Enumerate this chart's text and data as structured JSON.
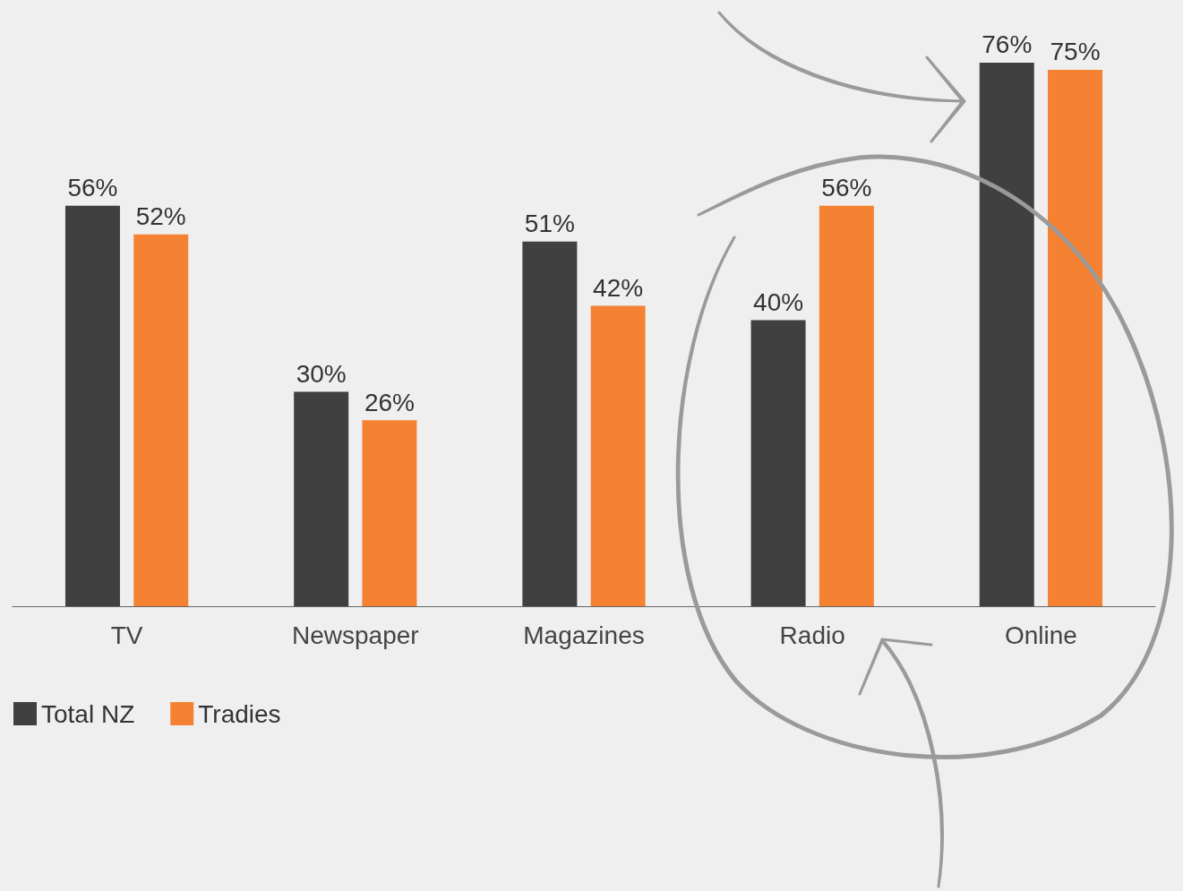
{
  "chart_data": {
    "type": "bar",
    "categories": [
      "TV",
      "Newspaper",
      "Magazines",
      "Radio",
      "Online"
    ],
    "series": [
      {
        "name": "Total NZ",
        "color": "#404040",
        "values": [
          56,
          30,
          51,
          40,
          76
        ],
        "value_labels": [
          "56%",
          "30%",
          "51%",
          "40%",
          "76%"
        ]
      },
      {
        "name": "Tradies",
        "color": "#f58233",
        "values": [
          52,
          26,
          42,
          56,
          75
        ],
        "value_labels": [
          "52%",
          "26%",
          "42%",
          "56%",
          "75%"
        ]
      }
    ],
    "legend": "bottom left"
  }
}
